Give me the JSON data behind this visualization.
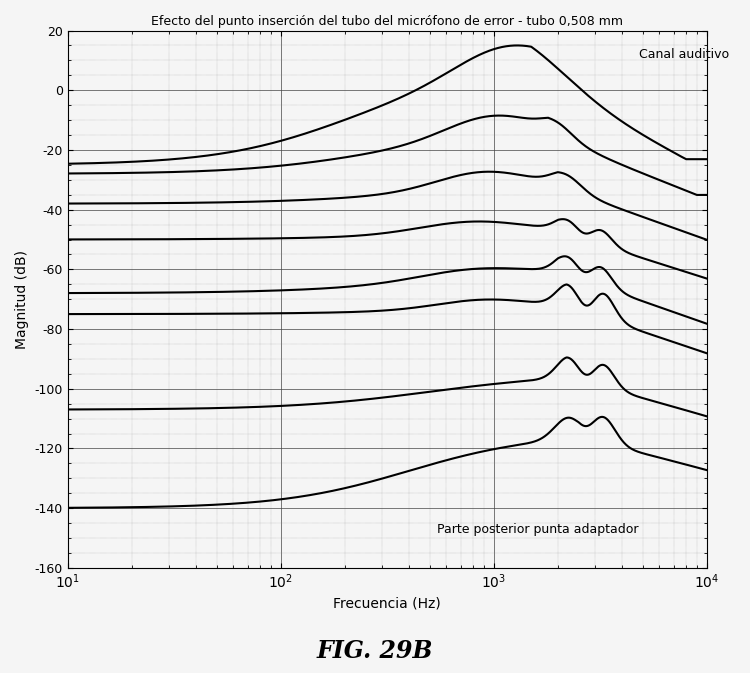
{
  "title": "Efecto del punto inserción del tubo del micrófono de error - tubo 0,508 mm",
  "xlabel": "Frecuencia (Hz)",
  "ylabel": "Magnitud (dB)",
  "figcaption": "FIG. 29B",
  "xlim": [
    10,
    10000
  ],
  "ylim": [
    -160,
    20
  ],
  "yticks": [
    20,
    0,
    -20,
    -40,
    -60,
    -80,
    -100,
    -120,
    -140,
    -160
  ],
  "annotation_top": "Canal auditivo",
  "annotation_bottom": "Parte posterior punta adaptador",
  "background_color": "#f5f5f5",
  "line_color": "#000000"
}
